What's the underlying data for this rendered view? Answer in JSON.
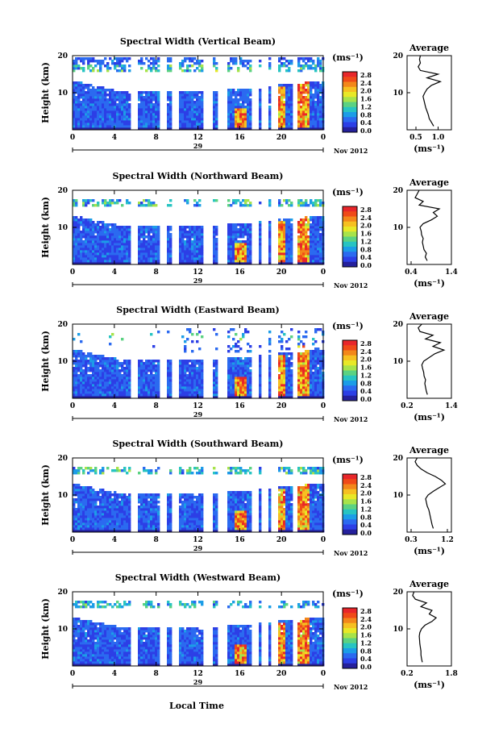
{
  "figure": {
    "xlabel": "Local Time",
    "date_label": "Nov 2012",
    "day_label": "29",
    "colorbar_unit": "(ms⁻¹)",
    "avg_title": "Average",
    "avg_xlabel": "(ms⁻¹)"
  },
  "colorbar": {
    "ticks": [
      "2.8",
      "2.4",
      "2.0",
      "1.6",
      "1.2",
      "0.8",
      "0.4",
      "0.0"
    ],
    "colors": [
      "#e8262a",
      "#f04a18",
      "#f3871a",
      "#f6c021",
      "#e8e827",
      "#a7e34a",
      "#5bd282",
      "#28c4c2",
      "#1c9de7",
      "#2b6af0",
      "#2c3fe6",
      "#25209c"
    ]
  },
  "chart_data": [
    {
      "type": "heatmap",
      "title": "Spectral Width (Vertical Beam)",
      "ylabel": "Height (km)",
      "x_ticks": [
        "0",
        "4",
        "8",
        "12",
        "16",
        "20",
        "0"
      ],
      "y_ticks": [
        "20",
        "10"
      ],
      "xlim": [
        0,
        24
      ],
      "ylim": [
        0,
        20
      ],
      "gaps_hours": [
        [
          5.6,
          6.1
        ],
        [
          8.4,
          8.9
        ],
        [
          9.6,
          10.1
        ],
        [
          12.7,
          13.2
        ],
        [
          13.9,
          14.8
        ],
        [
          17.3,
          17.7
        ],
        [
          18.2,
          18.6
        ],
        [
          19.1,
          19.6
        ],
        [
          21.1,
          21.5
        ]
      ],
      "average": {
        "title": "Average",
        "xlabel": "(ms⁻¹)",
        "xlim": [
          0.3,
          1.3
        ],
        "x_ticks": [
          "0.5",
          "1.0"
        ],
        "y_ticks": [
          "20",
          "10"
        ],
        "heights": [
          1,
          2,
          3,
          4,
          5,
          6,
          7,
          8,
          9,
          10,
          11,
          12,
          13,
          14,
          15,
          16,
          17,
          18,
          19,
          20
        ],
        "values": [
          0.9,
          0.85,
          0.8,
          0.78,
          0.75,
          0.72,
          0.7,
          0.68,
          0.66,
          0.7,
          0.75,
          0.85,
          1.05,
          0.75,
          1.0,
          0.6,
          0.55,
          0.6,
          0.58,
          0.6
        ]
      }
    },
    {
      "type": "heatmap",
      "title": "Spectral Width (Northward Beam)",
      "ylabel": "Height (km)",
      "x_ticks": [
        "0",
        "4",
        "8",
        "12",
        "16",
        "20",
        "0"
      ],
      "y_ticks": [
        "20",
        "10"
      ],
      "xlim": [
        0,
        24
      ],
      "ylim": [
        0,
        20
      ],
      "gaps_hours": [
        [
          5.6,
          6.1
        ],
        [
          8.4,
          8.9
        ],
        [
          9.6,
          10.1
        ],
        [
          12.7,
          13.2
        ],
        [
          13.9,
          14.8
        ],
        [
          17.3,
          17.7
        ],
        [
          18.2,
          18.6
        ],
        [
          19.1,
          19.6
        ],
        [
          21.1,
          21.5
        ]
      ],
      "average": {
        "title": "Average",
        "xlabel": "(ms⁻¹)",
        "xlim": [
          0.3,
          1.4
        ],
        "x_ticks": [
          "0.4",
          "1.4"
        ],
        "y_ticks": [
          "20",
          "10"
        ],
        "heights": [
          1,
          2,
          3,
          4,
          5,
          6,
          7,
          8,
          9,
          10,
          11,
          12,
          13,
          14,
          15,
          16,
          17,
          18,
          19,
          20
        ],
        "values": [
          0.8,
          0.75,
          0.78,
          0.72,
          0.7,
          0.68,
          0.7,
          0.66,
          0.65,
          0.62,
          0.7,
          0.9,
          1.05,
          0.95,
          1.1,
          0.6,
          0.7,
          0.5,
          0.55,
          0.6
        ]
      }
    },
    {
      "type": "heatmap",
      "title": "Spectral Width (Eastward Beam)",
      "ylabel": "Height (km)",
      "x_ticks": [
        "0",
        "4",
        "8",
        "12",
        "16",
        "20",
        "0"
      ],
      "y_ticks": [
        "20",
        "10"
      ],
      "xlim": [
        0,
        24
      ],
      "ylim": [
        0,
        20
      ],
      "gaps_hours": [
        [
          5.6,
          6.1
        ],
        [
          8.4,
          8.9
        ],
        [
          9.6,
          10.1
        ],
        [
          12.7,
          13.2
        ],
        [
          13.9,
          14.8
        ],
        [
          17.3,
          17.7
        ],
        [
          18.2,
          18.6
        ],
        [
          19.1,
          19.6
        ],
        [
          21.1,
          21.5
        ]
      ],
      "average": {
        "title": "Average",
        "xlabel": "(ms⁻¹)",
        "xlim": [
          0.2,
          1.4
        ],
        "x_ticks": [
          "0.2",
          "1.4"
        ],
        "y_ticks": [
          "20",
          "10"
        ],
        "heights": [
          1,
          2,
          3,
          4,
          5,
          6,
          7,
          8,
          9,
          10,
          11,
          12,
          13,
          14,
          15,
          16,
          17,
          18,
          19,
          20
        ],
        "values": [
          0.75,
          0.72,
          0.7,
          0.68,
          0.7,
          0.66,
          0.65,
          0.62,
          0.6,
          0.65,
          0.8,
          0.95,
          1.2,
          0.9,
          1.1,
          0.7,
          0.9,
          0.55,
          0.5,
          0.6
        ]
      }
    },
    {
      "type": "heatmap",
      "title": "Spectral Width (Southward Beam)",
      "ylabel": "Height (km)",
      "x_ticks": [
        "0",
        "4",
        "8",
        "12",
        "16",
        "20",
        "0"
      ],
      "y_ticks": [
        "20",
        "10"
      ],
      "xlim": [
        0,
        24
      ],
      "ylim": [
        0,
        20
      ],
      "gaps_hours": [
        [
          5.6,
          6.1
        ],
        [
          8.4,
          8.9
        ],
        [
          9.6,
          10.1
        ],
        [
          12.7,
          13.2
        ],
        [
          13.9,
          14.8
        ],
        [
          17.3,
          17.7
        ],
        [
          18.2,
          18.6
        ],
        [
          19.1,
          19.6
        ],
        [
          21.1,
          21.5
        ]
      ],
      "average": {
        "title": "Average",
        "xlabel": "(ms⁻¹)",
        "xlim": [
          0.2,
          1.3
        ],
        "x_ticks": [
          "0.3",
          "1.2"
        ],
        "y_ticks": [
          "20",
          "10"
        ],
        "heights": [
          1,
          2,
          3,
          4,
          5,
          6,
          7,
          8,
          9,
          10,
          11,
          12,
          13,
          14,
          15,
          16,
          17,
          18,
          19,
          20
        ],
        "values": [
          0.85,
          0.82,
          0.8,
          0.78,
          0.76,
          0.74,
          0.7,
          0.68,
          0.66,
          0.72,
          0.85,
          1.0,
          1.15,
          1.05,
          0.9,
          0.7,
          0.55,
          0.45,
          0.4,
          0.45
        ]
      }
    },
    {
      "type": "heatmap",
      "title": "Spectral Width (Westward Beam)",
      "ylabel": "Height (km)",
      "x_ticks": [
        "0",
        "4",
        "8",
        "12",
        "16",
        "20",
        "0"
      ],
      "y_ticks": [
        "20",
        "10"
      ],
      "xlim": [
        0,
        24
      ],
      "ylim": [
        0,
        20
      ],
      "gaps_hours": [
        [
          5.6,
          6.1
        ],
        [
          8.4,
          8.9
        ],
        [
          9.6,
          10.1
        ],
        [
          12.7,
          13.2
        ],
        [
          13.9,
          14.8
        ],
        [
          17.3,
          17.7
        ],
        [
          18.2,
          18.6
        ],
        [
          19.1,
          19.6
        ],
        [
          21.1,
          21.5
        ]
      ],
      "average": {
        "title": "Average",
        "xlabel": "(ms⁻¹)",
        "xlim": [
          0.2,
          1.8
        ],
        "x_ticks": [
          "0.2",
          "1.8"
        ],
        "y_ticks": [
          "20",
          "10"
        ],
        "heights": [
          1,
          2,
          3,
          4,
          5,
          6,
          7,
          8,
          9,
          10,
          11,
          12,
          13,
          14,
          15,
          16,
          17,
          18,
          19,
          20
        ],
        "values": [
          0.75,
          0.72,
          0.7,
          0.7,
          0.68,
          0.66,
          0.65,
          0.64,
          0.66,
          0.72,
          0.85,
          1.1,
          1.25,
          1.0,
          1.1,
          0.7,
          0.9,
          0.5,
          0.4,
          0.45
        ]
      }
    }
  ]
}
